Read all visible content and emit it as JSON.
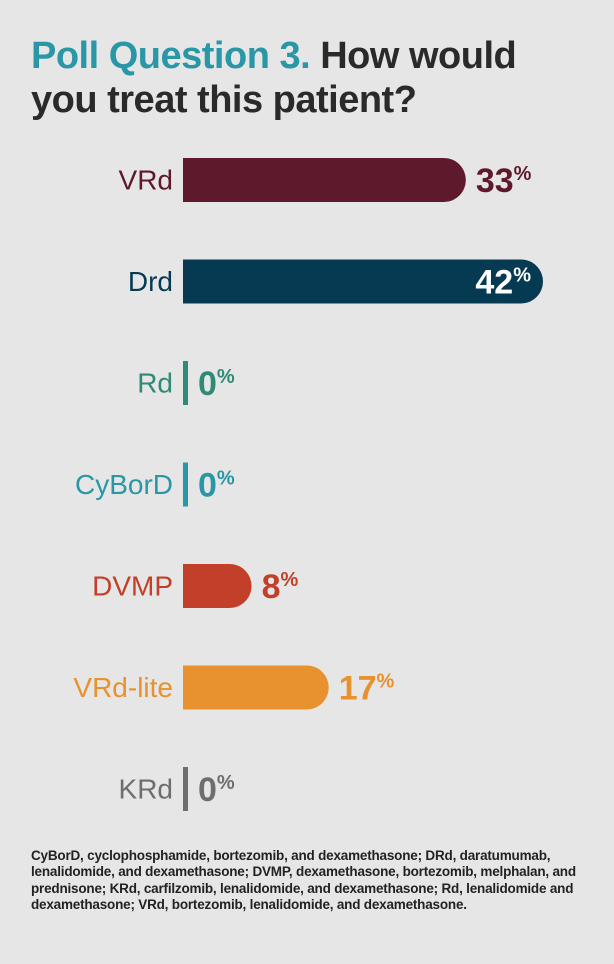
{
  "header": {
    "question_label": "Poll Question 3.",
    "question_text": "How would you treat this patient?"
  },
  "chart_data": {
    "type": "bar",
    "orientation": "horizontal",
    "categories": [
      "VRd",
      "Drd",
      "Rd",
      "CyBorD",
      "DVMP",
      "VRd-lite",
      "KRd"
    ],
    "values": [
      33,
      42,
      0,
      0,
      8,
      17,
      0
    ],
    "unit": "%",
    "colors": [
      "#5e1a2c",
      "#053a52",
      "#2f8a77",
      "#2a97a6",
      "#c2402a",
      "#e8912f",
      "#6e6e6e"
    ],
    "value_label_colors": [
      "#5e1a2c",
      "#ffffff",
      "#2f8a77",
      "#2a97a6",
      "#c2402a",
      "#e8912f",
      "#6e6e6e"
    ],
    "value_label_inside": [
      false,
      true,
      false,
      false,
      false,
      false,
      false
    ],
    "xlim": [
      0,
      42
    ]
  },
  "footnote": "CyBorD, cyclophosphamide, bortezomib, and dexamethasone; DRd, daratumumab, lenalidomide, and dexamethasone; DVMP, dexamethasone, bortezomib, melphalan, and prednisone; KRd, carfilzomib, lenalidomide, and dexamethasone; Rd, lenalidomide and dexamethasone; VRd, bortezomib, lenalidomide, and dexamethasone."
}
